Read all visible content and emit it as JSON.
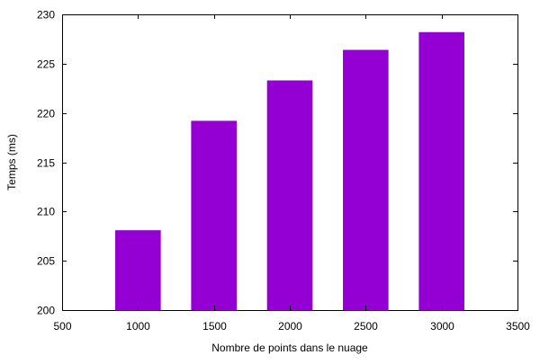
{
  "chart_data": {
    "type": "bar",
    "title": "",
    "xlabel": "Nombre de points dans le nuage",
    "ylabel": "Temps (ms)",
    "x": [
      1000,
      1500,
      2000,
      2500,
      3000
    ],
    "values": [
      208.1,
      219.2,
      223.3,
      226.4,
      228.2
    ],
    "xlim": [
      500,
      3500
    ],
    "ylim": [
      200,
      230
    ],
    "xticks": [
      500,
      1000,
      1500,
      2000,
      2500,
      3000,
      3500
    ],
    "yticks": [
      200,
      205,
      210,
      215,
      220,
      225,
      230
    ],
    "bar_width": 300,
    "bar_color": "#9400d3",
    "grid": false,
    "legend": "none"
  }
}
